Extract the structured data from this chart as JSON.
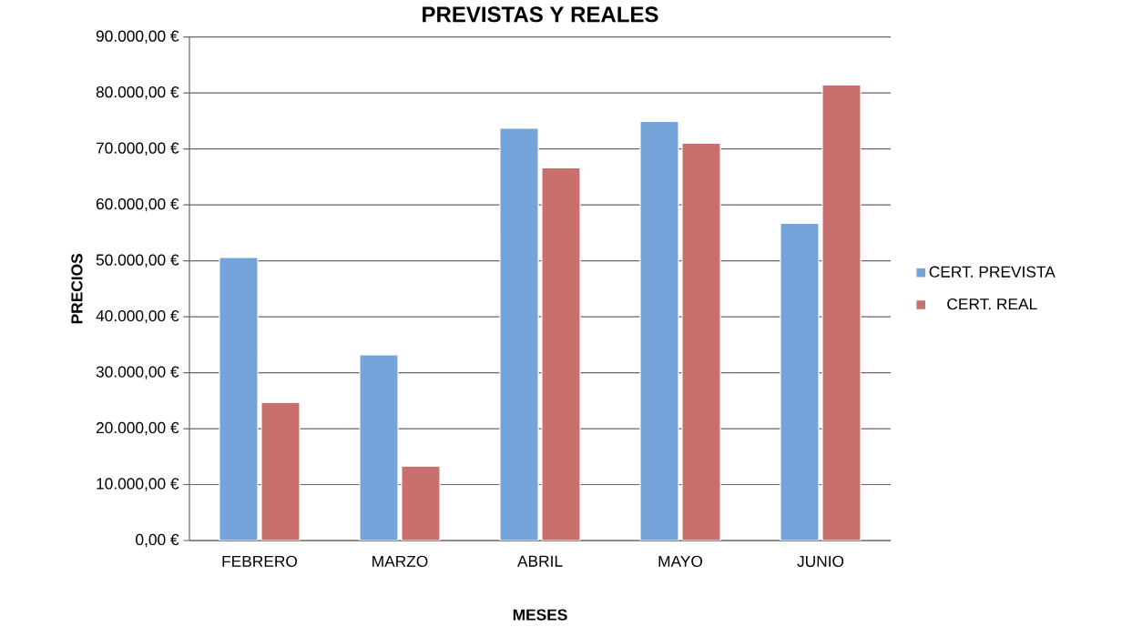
{
  "chart_data": {
    "type": "bar",
    "title": "PREVISTAS Y REALES",
    "xlabel": "MESES",
    "ylabel": "PRECIOS",
    "categories": [
      "FEBRERO",
      "MARZO",
      "ABRIL",
      "MAYO",
      "JUNIO"
    ],
    "series": [
      {
        "name": "CERT. PREVISTA",
        "color": "#75a4db",
        "values": [
          50600,
          33200,
          73700,
          74900,
          56700
        ]
      },
      {
        "name": "CERT. REAL",
        "color": "#c9706e",
        "values": [
          24700,
          13300,
          66600,
          71000,
          81400
        ]
      }
    ],
    "ylim": [
      0,
      90000
    ],
    "yticks": [
      {
        "value": 0,
        "label": "0,00 €"
      },
      {
        "value": 10000,
        "label": "10.000,00 €"
      },
      {
        "value": 20000,
        "label": "20.000,00 €"
      },
      {
        "value": 30000,
        "label": "30.000,00 €"
      },
      {
        "value": 40000,
        "label": "40.000,00 €"
      },
      {
        "value": 50000,
        "label": "50.000,00 €"
      },
      {
        "value": 60000,
        "label": "60.000,00 €"
      },
      {
        "value": 70000,
        "label": "70.000,00 €"
      },
      {
        "value": 80000,
        "label": "80.000,00 €"
      },
      {
        "value": 90000,
        "label": "90.000,00 €"
      }
    ],
    "grid": "y",
    "legend": "right"
  }
}
